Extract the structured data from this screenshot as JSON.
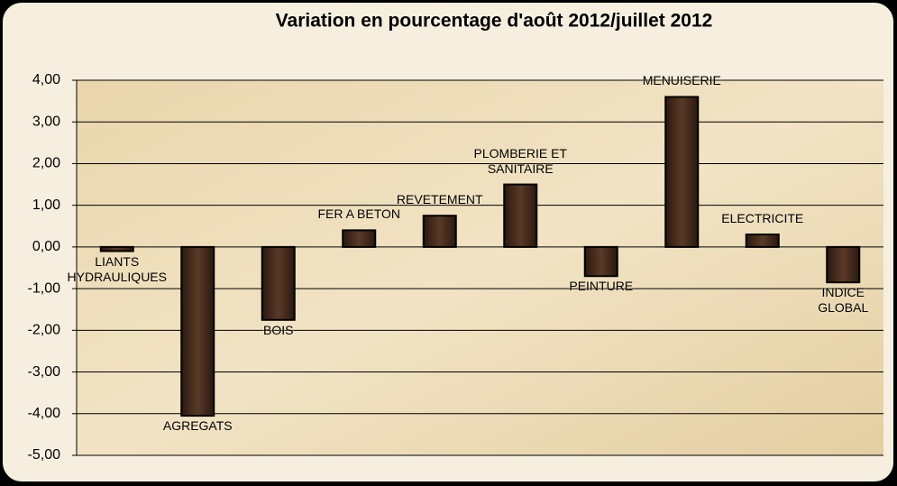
{
  "chart_data": {
    "type": "bar",
    "title": "Variation  en pourcentage d'août 2012/juillet 2012",
    "categories": [
      "LIANTS\nHYDRAULIQUES",
      "AGREGATS",
      "BOIS",
      "FER A BETON",
      "REVETEMENT",
      "PLOMBERIE  ET\nSANITAIRE",
      "PEINTURE",
      "MENUISERIE",
      "ELECTRICITE",
      "INDICE GLOBAL"
    ],
    "values": [
      -0.1,
      -4.05,
      -1.75,
      0.4,
      0.75,
      1.5,
      -0.7,
      3.6,
      0.3,
      -0.85
    ],
    "color": "#3a2418",
    "ylim": [
      -5,
      4
    ],
    "yticks": [
      {
        "value": -5,
        "label": "-5,00"
      },
      {
        "value": -4,
        "label": "-4,00"
      },
      {
        "value": -3,
        "label": "-3,00"
      },
      {
        "value": -2,
        "label": "-2,00"
      },
      {
        "value": -1,
        "label": "-1,00"
      },
      {
        "value": 0,
        "label": "0,00"
      },
      {
        "value": 1,
        "label": "1,00"
      },
      {
        "value": 2,
        "label": "2,00"
      },
      {
        "value": 3,
        "label": "3,00"
      },
      {
        "value": 4,
        "label": "4,00"
      }
    ],
    "grid": true
  }
}
